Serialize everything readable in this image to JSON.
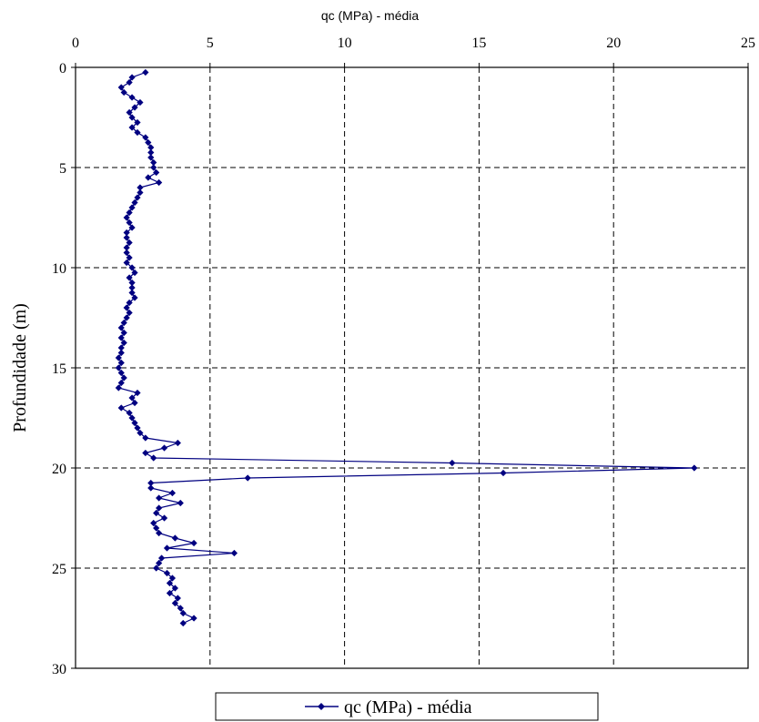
{
  "chart_data": {
    "type": "line",
    "xlabel": "qc (MPa) - média",
    "ylabel": "Profundidade (m)",
    "xlim": [
      0,
      25
    ],
    "ylim": [
      0,
      30
    ],
    "y_inverted": true,
    "x_axis_position": "top",
    "xticks": [
      0,
      5,
      10,
      15,
      20,
      25
    ],
    "yticks": [
      0,
      5,
      10,
      15,
      20,
      25,
      30
    ],
    "grid": true,
    "legend_position": "bottom-center",
    "series": [
      {
        "name": "qc (MPa) - média",
        "color": "#000080",
        "marker": "diamond",
        "points": [
          [
            2.6,
            0.25
          ],
          [
            2.1,
            0.5
          ],
          [
            2.0,
            0.75
          ],
          [
            1.7,
            1.0
          ],
          [
            1.8,
            1.25
          ],
          [
            2.1,
            1.5
          ],
          [
            2.4,
            1.75
          ],
          [
            2.2,
            2.0
          ],
          [
            2.0,
            2.25
          ],
          [
            2.1,
            2.5
          ],
          [
            2.3,
            2.75
          ],
          [
            2.1,
            3.0
          ],
          [
            2.3,
            3.25
          ],
          [
            2.6,
            3.5
          ],
          [
            2.7,
            3.75
          ],
          [
            2.8,
            4.0
          ],
          [
            2.8,
            4.25
          ],
          [
            2.8,
            4.5
          ],
          [
            2.9,
            4.75
          ],
          [
            2.9,
            5.0
          ],
          [
            3.0,
            5.25
          ],
          [
            2.7,
            5.5
          ],
          [
            3.1,
            5.75
          ],
          [
            2.4,
            6.0
          ],
          [
            2.4,
            6.25
          ],
          [
            2.3,
            6.5
          ],
          [
            2.2,
            6.75
          ],
          [
            2.1,
            7.0
          ],
          [
            2.0,
            7.25
          ],
          [
            1.9,
            7.5
          ],
          [
            2.0,
            7.75
          ],
          [
            2.1,
            8.0
          ],
          [
            1.9,
            8.25
          ],
          [
            1.9,
            8.5
          ],
          [
            2.0,
            8.75
          ],
          [
            1.9,
            9.0
          ],
          [
            1.9,
            9.25
          ],
          [
            2.0,
            9.5
          ],
          [
            1.9,
            9.75
          ],
          [
            2.1,
            10.0
          ],
          [
            2.2,
            10.25
          ],
          [
            2.0,
            10.5
          ],
          [
            2.1,
            10.75
          ],
          [
            2.1,
            11.0
          ],
          [
            2.1,
            11.25
          ],
          [
            2.2,
            11.5
          ],
          [
            2.0,
            11.75
          ],
          [
            1.9,
            12.0
          ],
          [
            2.0,
            12.25
          ],
          [
            1.9,
            12.5
          ],
          [
            1.8,
            12.75
          ],
          [
            1.7,
            13.0
          ],
          [
            1.8,
            13.25
          ],
          [
            1.7,
            13.5
          ],
          [
            1.8,
            13.75
          ],
          [
            1.7,
            14.0
          ],
          [
            1.7,
            14.25
          ],
          [
            1.6,
            14.5
          ],
          [
            1.7,
            14.75
          ],
          [
            1.6,
            15.0
          ],
          [
            1.7,
            15.25
          ],
          [
            1.8,
            15.5
          ],
          [
            1.7,
            15.75
          ],
          [
            1.6,
            16.0
          ],
          [
            2.3,
            16.25
          ],
          [
            2.1,
            16.5
          ],
          [
            2.2,
            16.75
          ],
          [
            1.7,
            17.0
          ],
          [
            2.0,
            17.25
          ],
          [
            2.1,
            17.5
          ],
          [
            2.2,
            17.75
          ],
          [
            2.3,
            18.0
          ],
          [
            2.4,
            18.25
          ],
          [
            2.6,
            18.5
          ],
          [
            3.8,
            18.75
          ],
          [
            3.3,
            19.0
          ],
          [
            2.6,
            19.25
          ],
          [
            2.9,
            19.5
          ],
          [
            14.0,
            19.75
          ],
          [
            23.0,
            20.0
          ],
          [
            15.9,
            20.25
          ],
          [
            6.4,
            20.5
          ],
          [
            2.8,
            20.75
          ],
          [
            2.8,
            21.0
          ],
          [
            3.6,
            21.25
          ],
          [
            3.1,
            21.5
          ],
          [
            3.9,
            21.75
          ],
          [
            3.1,
            22.0
          ],
          [
            3.0,
            22.25
          ],
          [
            3.3,
            22.5
          ],
          [
            2.9,
            22.75
          ],
          [
            3.0,
            23.0
          ],
          [
            3.1,
            23.25
          ],
          [
            3.7,
            23.5
          ],
          [
            4.4,
            23.75
          ],
          [
            3.4,
            24.0
          ],
          [
            5.9,
            24.25
          ],
          [
            3.2,
            24.5
          ],
          [
            3.1,
            24.75
          ],
          [
            3.0,
            25.0
          ],
          [
            3.4,
            25.25
          ],
          [
            3.6,
            25.5
          ],
          [
            3.5,
            25.75
          ],
          [
            3.7,
            26.0
          ],
          [
            3.5,
            26.25
          ],
          [
            3.8,
            26.5
          ],
          [
            3.7,
            26.75
          ],
          [
            3.9,
            27.0
          ],
          [
            4.0,
            27.25
          ],
          [
            4.4,
            27.5
          ],
          [
            4.0,
            27.75
          ]
        ]
      }
    ]
  }
}
